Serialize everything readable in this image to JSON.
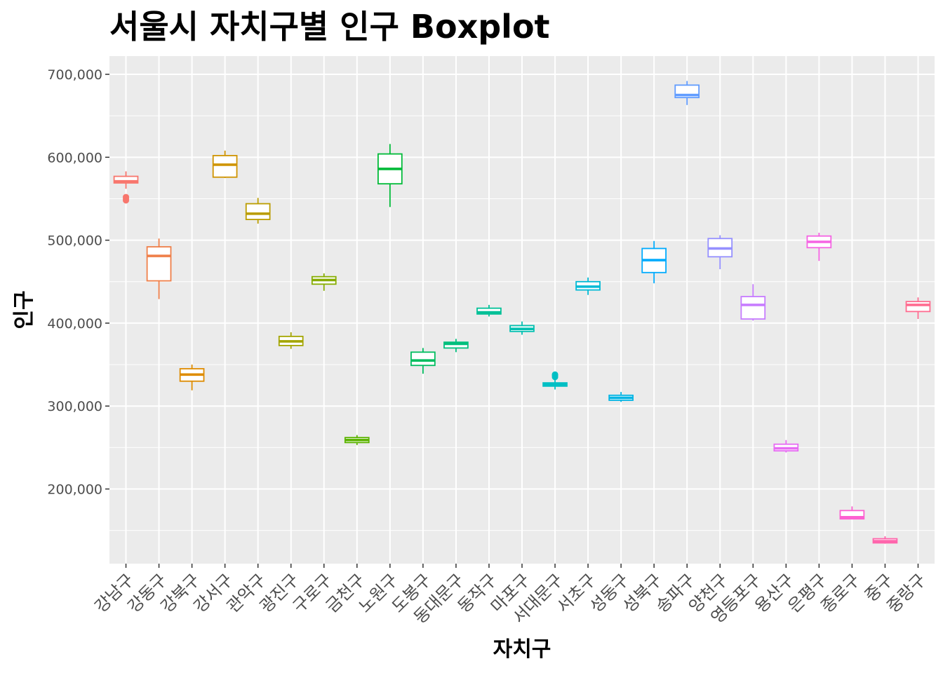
{
  "chart_data": {
    "type": "boxplot",
    "title": "서울시 자치구별 인구 Boxplot",
    "xlabel": "자치구",
    "ylabel": "인구",
    "ylim": [
      110000,
      722000
    ],
    "y_ticks": [
      200000,
      300000,
      400000,
      500000,
      600000,
      700000
    ],
    "y_tick_labels": [
      "200,000",
      "300,000",
      "400,000",
      "500,000",
      "600,000",
      "700,000"
    ],
    "grid": true,
    "legend": "none",
    "categories": [
      "강남구",
      "강동구",
      "강북구",
      "강서구",
      "관악구",
      "광진구",
      "구로구",
      "금천구",
      "노원구",
      "도봉구",
      "동대문구",
      "동작구",
      "마포구",
      "서대문구",
      "서초구",
      "성동구",
      "성북구",
      "송파구",
      "양천구",
      "영등포구",
      "용산구",
      "은평구",
      "종로구",
      "중구",
      "중랑구"
    ],
    "series": [
      {
        "category": "강남구",
        "color": "#F8766D",
        "min": 562000,
        "q1": 569000,
        "median": 571000,
        "q3": 577000,
        "max": 583000,
        "outliers": [
          548000,
          550000,
          552000
        ]
      },
      {
        "category": "강동구",
        "color": "#EF7F49",
        "min": 429000,
        "q1": 451000,
        "median": 481000,
        "q3": 492000,
        "max": 502000,
        "outliers": []
      },
      {
        "category": "강북구",
        "color": "#DE8C00",
        "min": 319000,
        "q1": 330000,
        "median": 338000,
        "q3": 345000,
        "max": 350000,
        "outliers": []
      },
      {
        "category": "강서구",
        "color": "#CF9400",
        "min": 575000,
        "q1": 576000,
        "median": 591000,
        "q3": 602000,
        "max": 608000,
        "outliers": []
      },
      {
        "category": "관악구",
        "color": "#BB9D00",
        "min": 520000,
        "q1": 525000,
        "median": 532000,
        "q3": 544000,
        "max": 551000,
        "outliers": []
      },
      {
        "category": "광진구",
        "color": "#A3A500",
        "min": 369000,
        "q1": 373000,
        "median": 378000,
        "q3": 384000,
        "max": 389000,
        "outliers": []
      },
      {
        "category": "구로구",
        "color": "#86AC00",
        "min": 439000,
        "q1": 447000,
        "median": 452000,
        "q3": 456000,
        "max": 460000,
        "outliers": []
      },
      {
        "category": "금천구",
        "color": "#5BB300",
        "min": 253000,
        "q1": 256000,
        "median": 259000,
        "q3": 262000,
        "max": 265000,
        "outliers": []
      },
      {
        "category": "노원구",
        "color": "#00BA38",
        "min": 540000,
        "q1": 568000,
        "median": 586000,
        "q3": 604000,
        "max": 616000,
        "outliers": []
      },
      {
        "category": "도봉구",
        "color": "#00BD5F",
        "min": 339000,
        "q1": 349000,
        "median": 355000,
        "q3": 365000,
        "max": 370000,
        "outliers": []
      },
      {
        "category": "동대문구",
        "color": "#00BF7D",
        "min": 365000,
        "q1": 370000,
        "median": 375000,
        "q3": 377000,
        "max": 381000,
        "outliers": []
      },
      {
        "category": "동작구",
        "color": "#00C097",
        "min": 408000,
        "q1": 411000,
        "median": 413000,
        "q3": 418000,
        "max": 422000,
        "outliers": []
      },
      {
        "category": "마포구",
        "color": "#00C0B0",
        "min": 386000,
        "q1": 390000,
        "median": 393000,
        "q3": 397000,
        "max": 402000,
        "outliers": []
      },
      {
        "category": "서대문구",
        "color": "#00BFC4",
        "min": 320000,
        "q1": 324000,
        "median": 326000,
        "q3": 328000,
        "max": 332000,
        "outliers": [
          335000,
          337000,
          338000
        ]
      },
      {
        "category": "서초구",
        "color": "#00BAD5",
        "min": 434000,
        "q1": 440000,
        "median": 444000,
        "q3": 450000,
        "max": 455000,
        "outliers": []
      },
      {
        "category": "성동구",
        "color": "#00B4E4",
        "min": 305000,
        "q1": 307000,
        "median": 310000,
        "q3": 313000,
        "max": 317000,
        "outliers": []
      },
      {
        "category": "성북구",
        "color": "#00ABFD",
        "min": 448000,
        "q1": 461000,
        "median": 476000,
        "q3": 490000,
        "max": 499000,
        "outliers": []
      },
      {
        "category": "송파구",
        "color": "#619CFF",
        "min": 663000,
        "q1": 672000,
        "median": 675000,
        "q3": 687000,
        "max": 692000,
        "outliers": []
      },
      {
        "category": "양천구",
        "color": "#9590FF",
        "min": 465000,
        "q1": 480000,
        "median": 490000,
        "q3": 502000,
        "max": 506000,
        "outliers": []
      },
      {
        "category": "영등포구",
        "color": "#C77CFF",
        "min": 403000,
        "q1": 405000,
        "median": 422000,
        "q3": 432000,
        "max": 447000,
        "outliers": []
      },
      {
        "category": "용산구",
        "color": "#E76BF3",
        "min": 244000,
        "q1": 246000,
        "median": 249000,
        "q3": 254000,
        "max": 259000,
        "outliers": []
      },
      {
        "category": "은평구",
        "color": "#F564E3",
        "min": 475000,
        "q1": 491000,
        "median": 498000,
        "q3": 505000,
        "max": 509000,
        "outliers": []
      },
      {
        "category": "종로구",
        "color": "#FD61D1",
        "min": 164000,
        "q1": 164000,
        "median": 166000,
        "q3": 174000,
        "max": 179000,
        "outliers": []
      },
      {
        "category": "중구",
        "color": "#FF65AC",
        "min": 134000,
        "q1": 135000,
        "median": 137000,
        "q3": 140000,
        "max": 143000,
        "outliers": []
      },
      {
        "category": "중랑구",
        "color": "#FF6C90",
        "min": 405000,
        "q1": 414000,
        "median": 422000,
        "q3": 426000,
        "max": 431000,
        "outliers": []
      }
    ]
  },
  "colors": {
    "panel_background": "#EBEBEB",
    "grid_major": "#FFFFFF",
    "axis_text": "#4D4D4D"
  }
}
